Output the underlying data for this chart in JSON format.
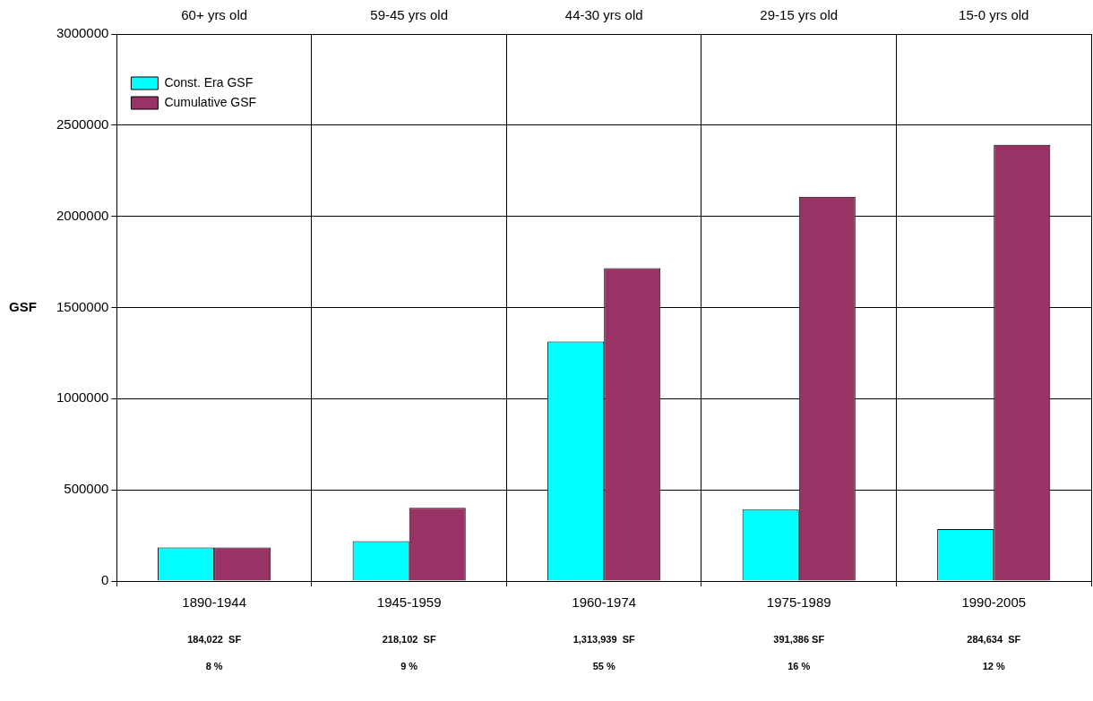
{
  "chart_data": {
    "type": "bar",
    "ylabel": "GSF",
    "categories": [
      "1890-1944",
      "1945-1959",
      "1960-1974",
      "1975-1989",
      "1990-2005"
    ],
    "series": [
      {
        "name": "Const. Era GSF",
        "color": "#00ffff",
        "values": [
          184022,
          218102,
          1313939,
          391386,
          284634
        ],
        "value_labels": [
          "184,022  SF",
          "218,102  SF",
          "1,313,939  SF",
          "391,386 SF",
          "284,634  SF"
        ]
      },
      {
        "name": "Cumulative GSF",
        "color": "#993366",
        "values": [
          184000,
          402000,
          1716000,
          2107000,
          2392000
        ]
      }
    ],
    "annotations": [
      "60+ yrs old",
      "59-45 yrs old",
      "44-30 yrs old",
      "29-15 yrs old",
      "15-0 yrs old",
      "8 %",
      "9 %",
      "55 %",
      "16 %",
      "12 %"
    ],
    "ylim": [
      0,
      3000000
    ],
    "yticks": [
      0,
      500000,
      1000000,
      1500000,
      2000000,
      2500000,
      3000000
    ],
    "grid": true,
    "legend": "top left"
  }
}
